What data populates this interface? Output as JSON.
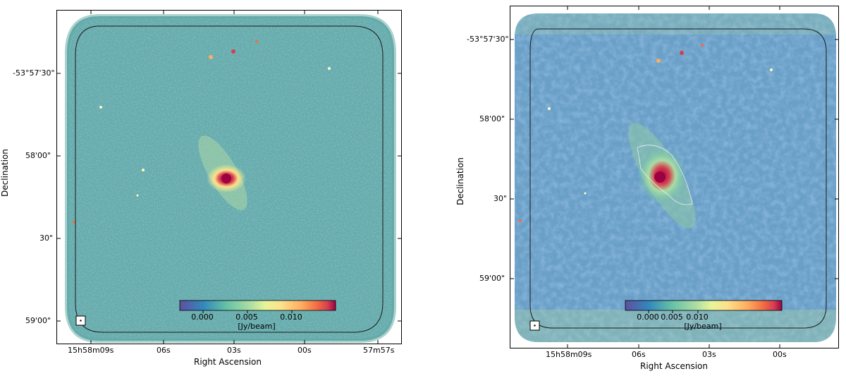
{
  "colors": {
    "map_low": "#4057a8",
    "map_mid": "#6fb8a8",
    "map_high": "#9e0142",
    "contour": "#ffffff",
    "outline": "#1a1a1a"
  },
  "panels": [
    {
      "xlabel": "Right Ascension",
      "ylabel": "Declination",
      "xticks": [
        "15h58m09s",
        "06s",
        "03s",
        "00s",
        "57m57s"
      ],
      "yticks": [
        "-53°57'30\"",
        "58'00\"",
        "30\"",
        "59'00\""
      ],
      "colorbar": {
        "ticks": [
          "0.000",
          "0.005",
          "0.010"
        ],
        "unit": "[Jy/beam]"
      },
      "beam_icon": "beam-box-icon"
    },
    {
      "xlabel": "Right Ascension",
      "ylabel": "Declination",
      "xticks": [
        "15h58m09s",
        "06s",
        "03s",
        "00s"
      ],
      "yticks": [
        "-53°57'30\"",
        "58'00\"",
        "30\"",
        "59'00\""
      ],
      "colorbar": {
        "ticks": [
          "0.000",
          "0.005",
          "0.010"
        ],
        "unit": "[Jy/beam]"
      },
      "beam_icon": "beam-box-icon"
    }
  ]
}
